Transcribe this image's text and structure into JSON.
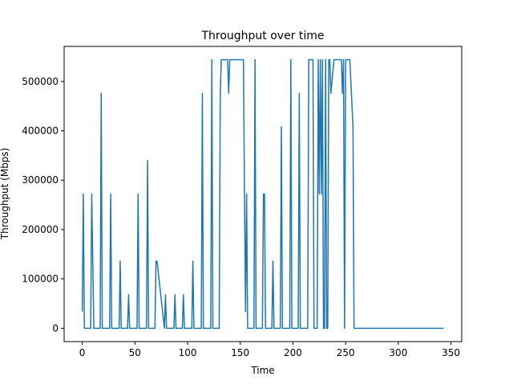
{
  "chart_data": {
    "type": "line",
    "title": "Throughput over time",
    "xlabel": "Time",
    "ylabel": "Throughput (Mbps)",
    "xlim": [
      -17.2,
      360.2
    ],
    "ylim": [
      -27000,
      571000
    ],
    "x_ticks": [
      0,
      50,
      100,
      150,
      200,
      250,
      300,
      350
    ],
    "x_tick_labels": [
      "0",
      "50",
      "100",
      "150",
      "200",
      "250",
      "300",
      "350"
    ],
    "y_ticks": [
      0,
      100000,
      200000,
      300000,
      400000,
      500000
    ],
    "y_tick_labels": [
      "0",
      "100000",
      "200000",
      "300000",
      "400000",
      "500000"
    ],
    "grid": false,
    "legend": "none",
    "series": [
      {
        "color": "#1f77b4",
        "x": [
          0,
          1,
          2,
          8,
          9,
          11,
          17,
          18,
          19,
          26,
          27,
          28,
          35,
          36,
          37,
          43,
          44,
          45,
          52,
          53,
          54,
          61,
          62,
          63,
          69,
          70,
          71,
          78,
          79,
          80,
          87,
          88,
          89,
          95,
          96,
          97,
          104,
          105,
          106,
          113,
          114,
          115,
          122,
          123,
          124,
          130,
          131,
          132,
          133,
          138,
          139,
          140,
          141,
          149,
          150,
          153,
          154,
          155,
          156,
          157,
          163,
          164,
          165,
          171,
          172,
          173,
          174,
          180,
          181,
          182,
          188,
          189,
          190,
          197,
          198,
          199,
          205,
          206,
          207,
          214,
          215,
          216,
          219,
          220,
          223,
          224,
          225,
          226,
          227,
          228,
          229,
          230,
          231,
          232,
          233,
          234,
          235,
          236,
          239,
          245,
          246,
          247,
          248,
          249,
          250,
          251,
          253,
          254,
          257,
          258,
          300,
          343
        ],
        "y": [
          34000,
          272000,
          0,
          0,
          272000,
          0,
          0,
          476000,
          0,
          0,
          272000,
          0,
          0,
          136000,
          0,
          0,
          68000,
          0,
          0,
          272000,
          0,
          0,
          340000,
          0,
          0,
          136000,
          136000,
          0,
          68000,
          0,
          0,
          68000,
          0,
          0,
          68000,
          0,
          0,
          136000,
          0,
          0,
          476000,
          0,
          0,
          544000,
          0,
          0,
          476000,
          544000,
          544000,
          544000,
          476000,
          544000,
          544000,
          544000,
          544000,
          544000,
          272000,
          34000,
          272000,
          0,
          0,
          544000,
          0,
          0,
          272000,
          272000,
          0,
          0,
          136000,
          0,
          0,
          408000,
          0,
          0,
          544000,
          0,
          0,
          476000,
          0,
          0,
          544000,
          544000,
          544000,
          0,
          0,
          544000,
          272000,
          544000,
          272000,
          544000,
          0,
          0,
          544000,
          0,
          0,
          544000,
          544000,
          476000,
          544000,
          544000,
          544000,
          476000,
          544000,
          0,
          544000,
          544000,
          544000,
          544000,
          408000,
          0,
          0,
          0
        ]
      }
    ]
  }
}
